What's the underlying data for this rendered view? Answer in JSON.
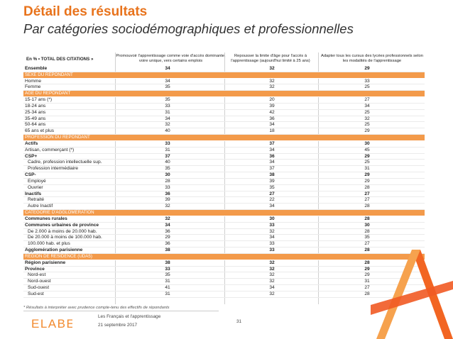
{
  "title": "Détail des résultats",
  "subtitle": "Par catégories sociodémographiques et professionnelles",
  "table": {
    "header_label": "En % • TOTAL DES CITATIONS »",
    "columns": [
      "Promouvoir l'apprentissage comme voie d'accès dominante, voire unique, vers certains emplois",
      "Repousser la limite d'âge pour l'accès à l'apprentissage (aujourd'hui limité à 25 ans)",
      "Adapter tous les cursus des lycées professionnels selon les modalités de l'apprentissage"
    ],
    "rows": [
      {
        "label": "Ensemble",
        "values": [
          "34",
          "32",
          "29"
        ],
        "style": "bold"
      },
      {
        "label": "SEXE DU REPONDANT",
        "values": [
          "",
          "",
          ""
        ],
        "style": "section"
      },
      {
        "label": "Homme",
        "values": [
          "34",
          "32",
          "33"
        ],
        "style": ""
      },
      {
        "label": "Femme",
        "values": [
          "35",
          "32",
          "25"
        ],
        "style": ""
      },
      {
        "label": "AGE DU REPONDANT",
        "values": [
          "",
          "",
          ""
        ],
        "style": "section"
      },
      {
        "label": "15-17 ans (*)",
        "values": [
          "35",
          "20",
          "27"
        ],
        "style": ""
      },
      {
        "label": "18-24 ans",
        "values": [
          "33",
          "39",
          "34"
        ],
        "style": ""
      },
      {
        "label": "25-34 ans",
        "values": [
          "31",
          "42",
          "25"
        ],
        "style": ""
      },
      {
        "label": "35-49 ans",
        "values": [
          "34",
          "36",
          "32"
        ],
        "style": ""
      },
      {
        "label": "50-64 ans",
        "values": [
          "32",
          "34",
          "25"
        ],
        "style": ""
      },
      {
        "label": "65 ans et plus",
        "values": [
          "40",
          "18",
          "29"
        ],
        "style": ""
      },
      {
        "label": "PROFESSION DU REPONDANT",
        "values": [
          "",
          "",
          ""
        ],
        "style": "section"
      },
      {
        "label": "Actifs",
        "values": [
          "33",
          "37",
          "30"
        ],
        "style": "bold"
      },
      {
        "label": "Artisan, commerçant (*)",
        "values": [
          "31",
          "34",
          "45"
        ],
        "style": ""
      },
      {
        "label": "CSP+",
        "values": [
          "37",
          "36",
          "29"
        ],
        "style": "bold"
      },
      {
        "label": "Cadre, profession intellectuelle sup.",
        "values": [
          "40",
          "34",
          "25"
        ],
        "style": "indent"
      },
      {
        "label": "Profession intermédiaire",
        "values": [
          "35",
          "37",
          "31"
        ],
        "style": "indent"
      },
      {
        "label": "CSP-",
        "values": [
          "30",
          "38",
          "29"
        ],
        "style": "bold"
      },
      {
        "label": "Employé",
        "values": [
          "28",
          "39",
          "29"
        ],
        "style": "indent"
      },
      {
        "label": "Ouvrier",
        "values": [
          "33",
          "35",
          "28"
        ],
        "style": "indent"
      },
      {
        "label": "Inactifs",
        "values": [
          "36",
          "27",
          "27"
        ],
        "style": "bold"
      },
      {
        "label": "Retraité",
        "values": [
          "39",
          "22",
          "27"
        ],
        "style": "indent"
      },
      {
        "label": "Autre Inactif",
        "values": [
          "32",
          "34",
          "28"
        ],
        "style": "indent"
      },
      {
        "label": "CATEGORIE D'AGGLOMERATION",
        "values": [
          "",
          "",
          ""
        ],
        "style": "section"
      },
      {
        "label": "Communes rurales",
        "values": [
          "32",
          "30",
          "28"
        ],
        "style": "bold"
      },
      {
        "label": "Communes urbaines de province",
        "values": [
          "34",
          "33",
          "30"
        ],
        "style": "bold"
      },
      {
        "label": "De 2.000 à moins de 20.000 hab.",
        "values": [
          "36",
          "32",
          "28"
        ],
        "style": "indent"
      },
      {
        "label": "De 20.000 à moins de 100.000 hab.",
        "values": [
          "29",
          "34",
          "35"
        ],
        "style": "indent"
      },
      {
        "label": "100.000 hab. et plus",
        "values": [
          "36",
          "33",
          "27"
        ],
        "style": "indent"
      },
      {
        "label": "Agglomération parisienne",
        "values": [
          "38",
          "33",
          "28"
        ],
        "style": "bold"
      },
      {
        "label": "REGION DE RESIDENCE (UDA5)",
        "values": [
          "",
          "",
          ""
        ],
        "style": "section"
      },
      {
        "label": "Région parisienne",
        "values": [
          "38",
          "32",
          "28"
        ],
        "style": "bold"
      },
      {
        "label": "Province",
        "values": [
          "33",
          "32",
          "29"
        ],
        "style": "bold"
      },
      {
        "label": "Nord-est",
        "values": [
          "35",
          "32",
          "29"
        ],
        "style": "indent"
      },
      {
        "label": "Nord-ouest",
        "values": [
          "31",
          "32",
          "31"
        ],
        "style": "indent"
      },
      {
        "label": "Sud-ouest",
        "values": [
          "41",
          "34",
          "27"
        ],
        "style": "indent"
      },
      {
        "label": "Sud-est",
        "values": [
          "31",
          "32",
          "28"
        ],
        "style": "indent"
      }
    ]
  },
  "footnote": "* Résultats à interpréter avec prudence compte-tenu des effectifs de répondants",
  "footer": {
    "logo": "ELABE",
    "line1": "Les Français et l'apprentissage",
    "line2": "21 septembre 2017",
    "page": "31"
  },
  "colors": {
    "accent": "#E8731C",
    "section_bg": "#F39A4A"
  }
}
